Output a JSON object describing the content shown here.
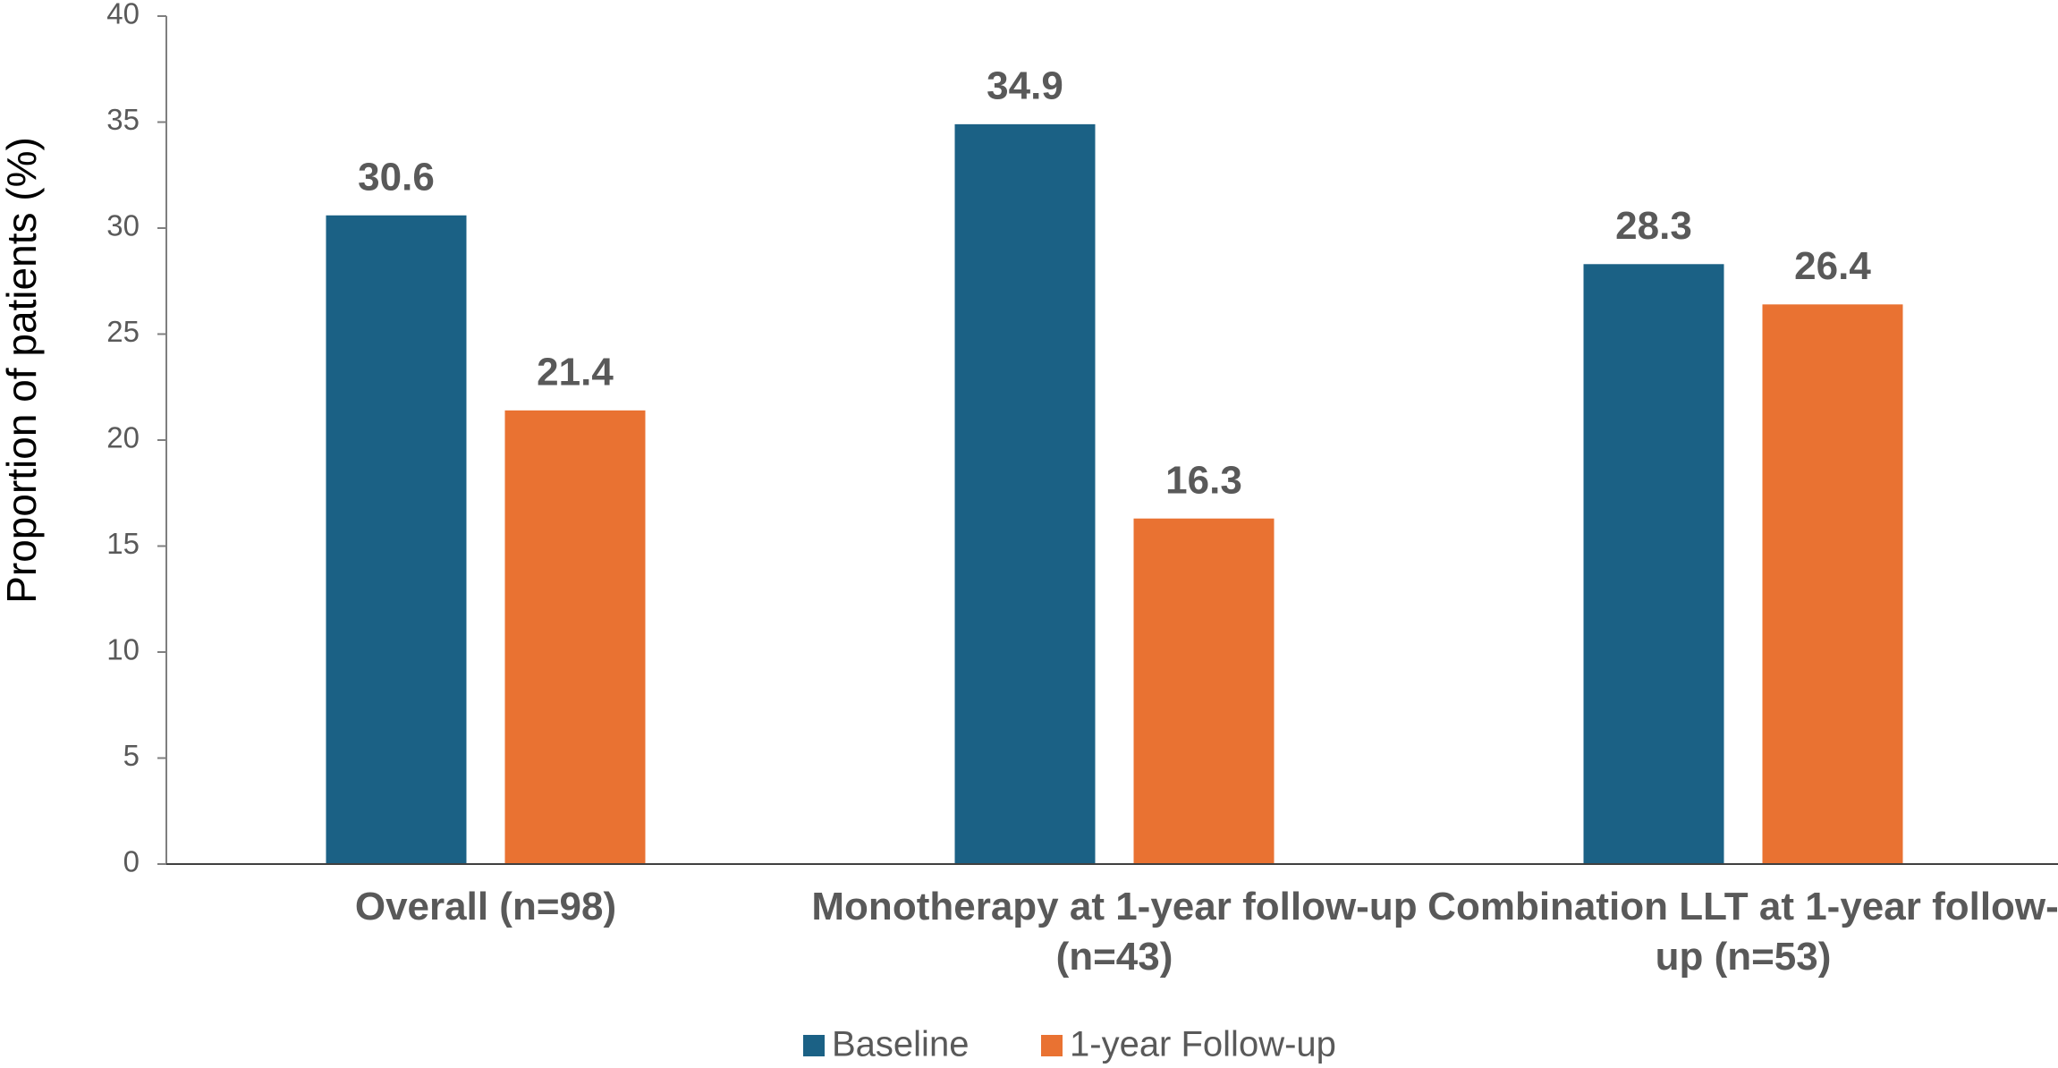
{
  "chart_data": {
    "type": "bar",
    "y_label": "Proportion of patients (%)",
    "categories": [
      "Overall (n=98)",
      "Monotherapy at 1-year follow-up (n=43)",
      "Combination LLT at 1-year follow-up (n=53)"
    ],
    "series": [
      {
        "name": "Baseline",
        "color": "#1b6185",
        "values": [
          30.6,
          34.9,
          28.3
        ]
      },
      {
        "name": "1-year Follow-up",
        "color": "#e97232",
        "values": [
          21.4,
          16.3,
          26.4
        ]
      }
    ],
    "ylim": [
      0,
      40
    ],
    "yticks": [
      0,
      5,
      10,
      15,
      20,
      25,
      30,
      35,
      40
    ],
    "grid": false,
    "legend": "bottom"
  }
}
